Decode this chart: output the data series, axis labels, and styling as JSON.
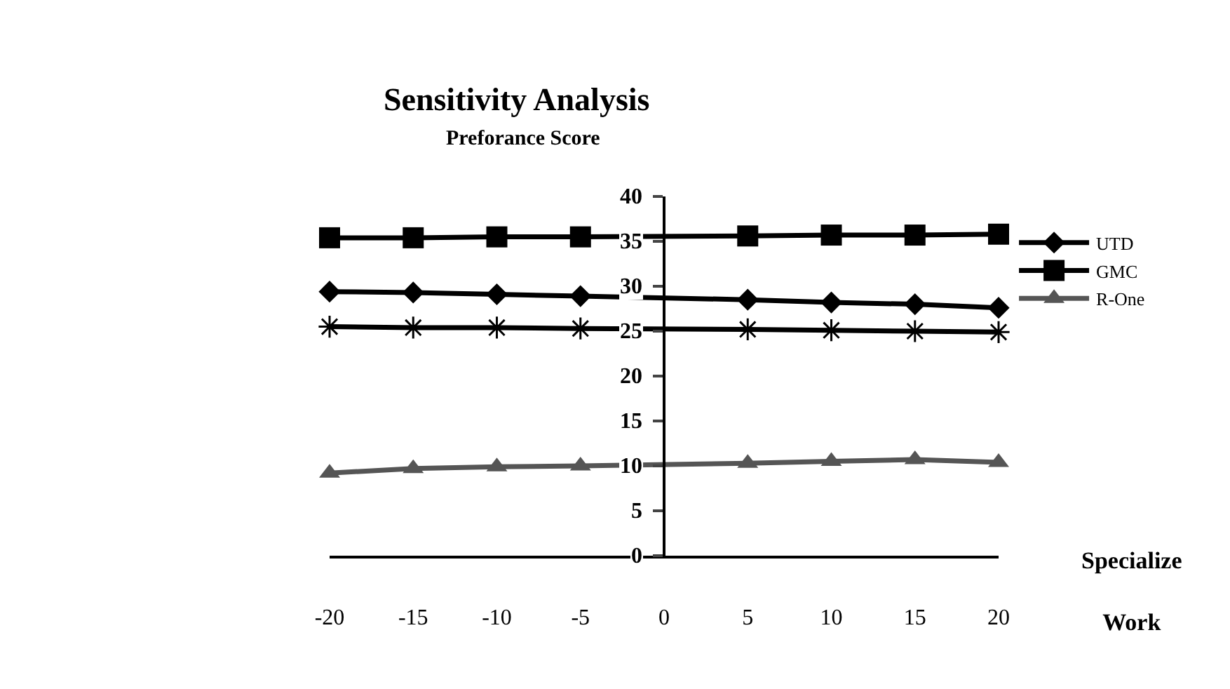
{
  "chart_data": {
    "type": "line",
    "title": "Sensitivity Analysis",
    "ylabel": "Preforance Score",
    "xlabel": "Specialize Work",
    "x": [
      -20,
      -15,
      -10,
      -5,
      5,
      10,
      15,
      20
    ],
    "series": [
      {
        "name": "UTD",
        "color": "#000000",
        "marker": "diamond",
        "values": [
          29.4,
          29.3,
          29.1,
          28.9,
          28.5,
          28.2,
          28.0,
          27.6
        ]
      },
      {
        "name": "GMC",
        "color": "#000000",
        "marker": "square",
        "values": [
          35.4,
          35.4,
          35.5,
          35.5,
          35.6,
          35.7,
          35.7,
          35.8
        ]
      },
      {
        "name": "R-One",
        "color": "#555555",
        "marker": "triangle",
        "values": [
          9.2,
          9.7,
          9.9,
          10.0,
          10.3,
          10.5,
          10.7,
          10.4
        ]
      },
      {
        "color": "#000000",
        "marker": "cross",
        "values": [
          25.5,
          25.4,
          25.4,
          25.3,
          25.2,
          25.1,
          25.0,
          24.9
        ]
      }
    ],
    "xlim": [
      -20,
      20
    ],
    "xticks": [
      -20,
      -15,
      -10,
      -5,
      0,
      5,
      10,
      15,
      20
    ],
    "ylim": [
      0,
      40
    ],
    "yticks": [
      0,
      5,
      10,
      15,
      20,
      25,
      30,
      35,
      40
    ],
    "grid": false,
    "legend": "right"
  }
}
